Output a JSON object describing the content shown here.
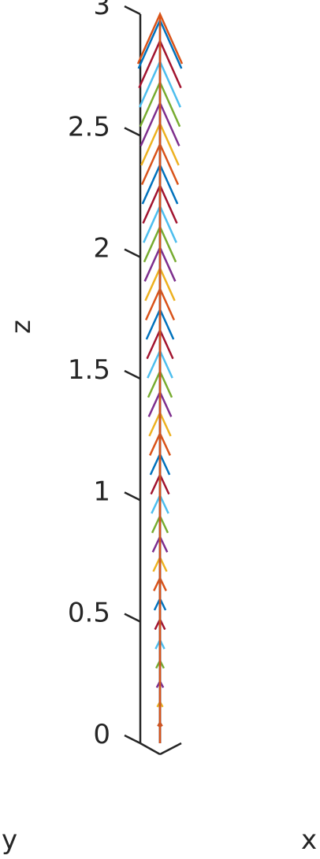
{
  "chart_data": {
    "type": "quiver3",
    "title": "",
    "xlabel": "x",
    "ylabel": "y",
    "zlabel": "z",
    "zlim": [
      0,
      3
    ],
    "z_ticks": [
      {
        "value": 0,
        "label": "0"
      },
      {
        "value": 0.5,
        "label": "0.5"
      },
      {
        "value": 1,
        "label": "1"
      },
      {
        "value": 1.5,
        "label": "1.5"
      },
      {
        "value": 2,
        "label": "2"
      },
      {
        "value": 2.5,
        "label": "2.5"
      },
      {
        "value": 3,
        "label": "3"
      }
    ],
    "grid": false,
    "legend": "none",
    "arrow_direction": "+z",
    "arrow_count": 36,
    "arrow_spacing_z": 0.085,
    "color_cycle": [
      "#D95319",
      "#EDB120",
      "#7E2F8E",
      "#77AC30",
      "#4DBEEE",
      "#A2142F",
      "#0072BD"
    ]
  }
}
